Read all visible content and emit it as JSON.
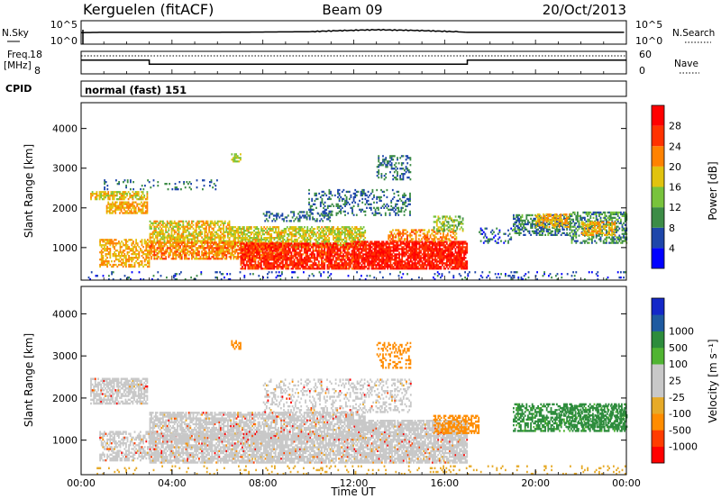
{
  "header": {
    "station": "Kerguelen (fitACF)",
    "beam": "Beam 09",
    "date": "20/Oct/2013"
  },
  "colors": {
    "power": [
      "#0000ff",
      "#1e46aa",
      "#3c8c46",
      "#78c33c",
      "#e1c30f",
      "#ff8200",
      "#ff3200",
      "#ff0000"
    ],
    "velocity": [
      "#ff0000",
      "#ff3c00",
      "#ff8c00",
      "#e6aa28",
      "#c8c8c8",
      "#c8c8c8",
      "#50b432",
      "#2d8c3c",
      "#1e5aa0",
      "#1428c8"
    ],
    "ground_scatter": "#c8c8c8"
  },
  "chart_data": [
    {
      "id": "nsky",
      "type": "line",
      "ylabel": "N.Sky",
      "ylabel_right": "N.Search",
      "ytick_labels_left": [
        "10^5",
        "10^0"
      ],
      "ytick_labels_right": [
        "10^5",
        "10^0"
      ],
      "series": [
        {
          "values": [
            [
              0,
              4.0
            ],
            [
              1,
              4.1
            ],
            [
              6,
              4.1
            ],
            [
              10,
              4.3
            ],
            [
              11,
              4.6
            ],
            [
              13,
              5.0
            ],
            [
              15,
              4.7
            ],
            [
              16.5,
              4.3
            ],
            [
              17,
              4.1
            ],
            [
              24,
              4.1
            ]
          ]
        }
      ]
    },
    {
      "id": "freq",
      "type": "line",
      "ylabel": "Freq.",
      "ylabel_units": "[MHz]",
      "ylabel_right": "Nave",
      "yticks_left": [
        18,
        8
      ],
      "yticks_right": [
        60,
        0
      ],
      "ylim_left": [
        8,
        18
      ],
      "ylim_right": [
        0,
        60
      ],
      "freq_series": [
        [
          0,
          14.1
        ],
        [
          3.0,
          14.1
        ],
        [
          3.0,
          12.3
        ],
        [
          17.0,
          12.3
        ],
        [
          17.0,
          14.1
        ],
        [
          24,
          14.1
        ]
      ],
      "nave_series": [
        [
          0,
          48
        ],
        [
          24,
          48
        ]
      ]
    },
    {
      "id": "cpid",
      "type": "table",
      "label": "CPID",
      "value": "normal (fast) 151"
    },
    {
      "id": "power",
      "type": "heatmap",
      "ylabel": "Slant Range [km]",
      "yticks": [
        1000,
        2000,
        3000,
        4000
      ],
      "ylim": [
        180,
        4650
      ],
      "xlim": [
        0,
        24
      ],
      "colorbar_label": "Power [dB]",
      "colorbar_ticks": [
        4,
        8,
        12,
        16,
        20,
        24,
        28
      ],
      "colorbar_range": [
        0,
        32
      ],
      "regions": [
        {
          "t0": 0.4,
          "t1": 2.9,
          "r0": 2200,
          "r1": 2420,
          "v": 18,
          "dens": 0.7
        },
        {
          "t0": 1.1,
          "t1": 2.9,
          "r0": 1850,
          "r1": 2150,
          "v": 20,
          "dens": 0.7
        },
        {
          "t0": 0.8,
          "t1": 3.0,
          "r0": 500,
          "r1": 1200,
          "v": 20,
          "dens": 0.55
        },
        {
          "t0": 3.0,
          "t1": 6.5,
          "r0": 1100,
          "r1": 1650,
          "v": 18,
          "dens": 0.7
        },
        {
          "t0": 6.5,
          "t1": 12.5,
          "r0": 1000,
          "r1": 1500,
          "v": 17,
          "dens": 0.65
        },
        {
          "t0": 3.0,
          "t1": 9.0,
          "r0": 700,
          "r1": 1150,
          "v": 22,
          "dens": 0.7
        },
        {
          "t0": 7.0,
          "t1": 12.0,
          "r0": 450,
          "r1": 1100,
          "v": 27,
          "dens": 0.8
        },
        {
          "t0": 12.0,
          "t1": 17.0,
          "r0": 450,
          "r1": 1150,
          "v": 28,
          "dens": 0.85
        },
        {
          "t0": 13.5,
          "t1": 16.5,
          "r0": 1150,
          "r1": 1450,
          "v": 22,
          "dens": 0.5
        },
        {
          "t0": 8.0,
          "t1": 11.0,
          "r0": 1650,
          "r1": 1900,
          "v": 8,
          "dens": 0.35
        },
        {
          "t0": 10.0,
          "t1": 14.5,
          "r0": 1800,
          "r1": 2450,
          "v": 8,
          "dens": 0.3
        },
        {
          "t0": 13.0,
          "t1": 14.5,
          "r0": 2700,
          "r1": 3300,
          "v": 8,
          "dens": 0.35
        },
        {
          "t0": 15.5,
          "t1": 16.8,
          "r0": 1400,
          "r1": 1800,
          "v": 14,
          "dens": 0.45
        },
        {
          "t0": 1.0,
          "t1": 6.0,
          "r0": 2450,
          "r1": 2700,
          "v": 8,
          "dens": 0.12
        },
        {
          "t0": 0.3,
          "t1": 24.0,
          "r0": 180,
          "r1": 400,
          "v": 6,
          "dens": 0.12
        },
        {
          "t0": 17.5,
          "t1": 19.0,
          "r0": 1100,
          "r1": 1500,
          "v": 6,
          "dens": 0.2
        },
        {
          "t0": 19.0,
          "t1": 21.5,
          "r0": 1300,
          "r1": 1800,
          "v": 9,
          "dens": 0.55
        },
        {
          "t0": 20.0,
          "t1": 21.5,
          "r0": 1500,
          "r1": 1850,
          "v": 20,
          "dens": 0.55
        },
        {
          "t0": 21.5,
          "t1": 24.0,
          "r0": 1100,
          "r1": 1900,
          "v": 10,
          "dens": 0.55
        },
        {
          "t0": 22.0,
          "t1": 23.5,
          "r0": 1300,
          "r1": 1650,
          "v": 20,
          "dens": 0.55
        },
        {
          "t0": 6.6,
          "t1": 7.0,
          "r0": 3150,
          "r1": 3350,
          "v": 16,
          "dens": 0.6
        }
      ]
    },
    {
      "id": "velocity",
      "type": "heatmap",
      "xlabel": "Time UT",
      "ylabel": "Slant Range [km]",
      "yticks": [
        1000,
        2000,
        3000,
        4000
      ],
      "ylim": [
        180,
        4650
      ],
      "xticks": [
        0,
        4,
        8,
        12,
        16,
        20,
        24
      ],
      "xtick_labels": [
        "00:00",
        "04:00",
        "08:00",
        "12:00",
        "16:00",
        "20:00",
        "00:00"
      ],
      "xlim": [
        0,
        24
      ],
      "colorbar_label": "Velocity [m s⁻¹]",
      "colorbar_ticks": [
        "-1000",
        "-500",
        "-100",
        "-25",
        "25",
        "100",
        "500",
        "1000"
      ],
      "regions": [
        {
          "t0": 0.4,
          "t1": 2.9,
          "r0": 1850,
          "r1": 2450,
          "v": 0,
          "dens": 0.7
        },
        {
          "t0": 0.8,
          "t1": 3.0,
          "r0": 500,
          "r1": 1200,
          "v": 0,
          "dens": 0.55
        },
        {
          "t0": 3.0,
          "t1": 12.5,
          "r0": 1000,
          "r1": 1650,
          "v": 0,
          "dens": 0.7
        },
        {
          "t0": 3.0,
          "t1": 12.0,
          "r0": 450,
          "r1": 1150,
          "v": 0,
          "dens": 0.75
        },
        {
          "t0": 12.0,
          "t1": 17.0,
          "r0": 450,
          "r1": 1450,
          "v": 0,
          "dens": 0.8
        },
        {
          "t0": 15.5,
          "t1": 17.5,
          "r0": 1150,
          "r1": 1600,
          "v": -300,
          "dens": 0.55
        },
        {
          "t0": 8.0,
          "t1": 14.5,
          "r0": 1650,
          "r1": 2450,
          "v": 0,
          "dens": 0.3
        },
        {
          "t0": 13.0,
          "t1": 14.5,
          "r0": 2700,
          "r1": 3300,
          "v": -200,
          "dens": 0.35
        },
        {
          "t0": 6.6,
          "t1": 7.0,
          "r0": 3150,
          "r1": 3350,
          "v": -300,
          "dens": 0.6
        },
        {
          "t0": 0.3,
          "t1": 24.0,
          "r0": 180,
          "r1": 400,
          "v": -60,
          "dens": 0.1
        },
        {
          "t0": 19.0,
          "t1": 24.0,
          "r0": 1200,
          "r1": 1850,
          "v": 150,
          "dens": 0.55
        },
        {
          "t0": 21.0,
          "t1": 24.0,
          "r0": 1300,
          "r1": 1800,
          "v": 300,
          "dens": 0.35
        }
      ]
    }
  ]
}
